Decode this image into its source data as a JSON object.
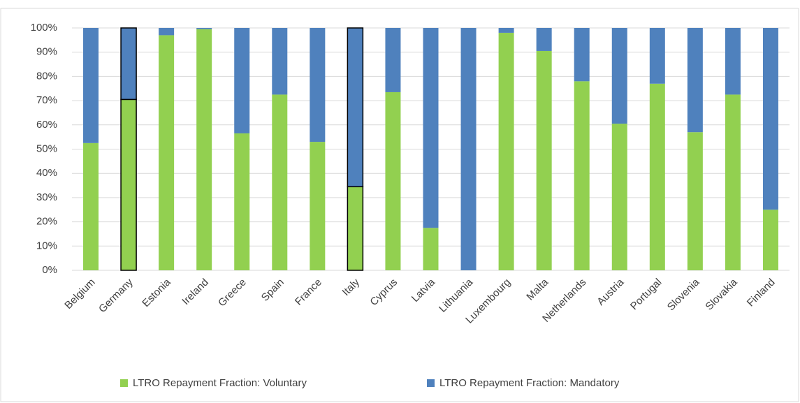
{
  "chart_data": {
    "type": "stacked_bar",
    "categories": [
      "Belgium",
      "Germany",
      "Estonia",
      "Ireland",
      "Greece",
      "Spain",
      "France",
      "Italy",
      "Cyprus",
      "Latvia",
      "Lithuania",
      "Luxembourg",
      "Malta",
      "Netherlands",
      "Austria",
      "Portugal",
      "Slovenia",
      "Slovakia",
      "Finland"
    ],
    "series": [
      {
        "name": "LTRO Repayment Fraction: Voluntary",
        "color": "#92d050",
        "values": [
          52.5,
          70.5,
          97,
          99.5,
          56.5,
          72.5,
          53,
          34.5,
          73.5,
          17.5,
          0,
          98,
          90.5,
          78,
          60.5,
          77,
          57,
          72.5,
          25
        ]
      },
      {
        "name": "LTRO Repayment Fraction: Mandatory",
        "color": "#4f81bd",
        "values": [
          47.5,
          29.5,
          3,
          0.5,
          43.5,
          27.5,
          47,
          65.5,
          26.5,
          82.5,
          100,
          2,
          9.5,
          22,
          39.5,
          23,
          43,
          27.5,
          75
        ]
      }
    ],
    "outlined_categories": [
      "Germany",
      "Italy"
    ],
    "ylim": [
      0,
      100
    ],
    "yticks": [
      {
        "value": 0,
        "label": "0%"
      },
      {
        "value": 10,
        "label": "10%"
      },
      {
        "value": 20,
        "label": "20%"
      },
      {
        "value": 30,
        "label": "30%"
      },
      {
        "value": 40,
        "label": "40%"
      },
      {
        "value": 50,
        "label": "50%"
      },
      {
        "value": 60,
        "label": "60%"
      },
      {
        "value": 70,
        "label": "70%"
      },
      {
        "value": 80,
        "label": "80%"
      },
      {
        "value": 90,
        "label": "90%"
      },
      {
        "value": 100,
        "label": "100%"
      }
    ],
    "grid": true,
    "legend": "bottom"
  }
}
